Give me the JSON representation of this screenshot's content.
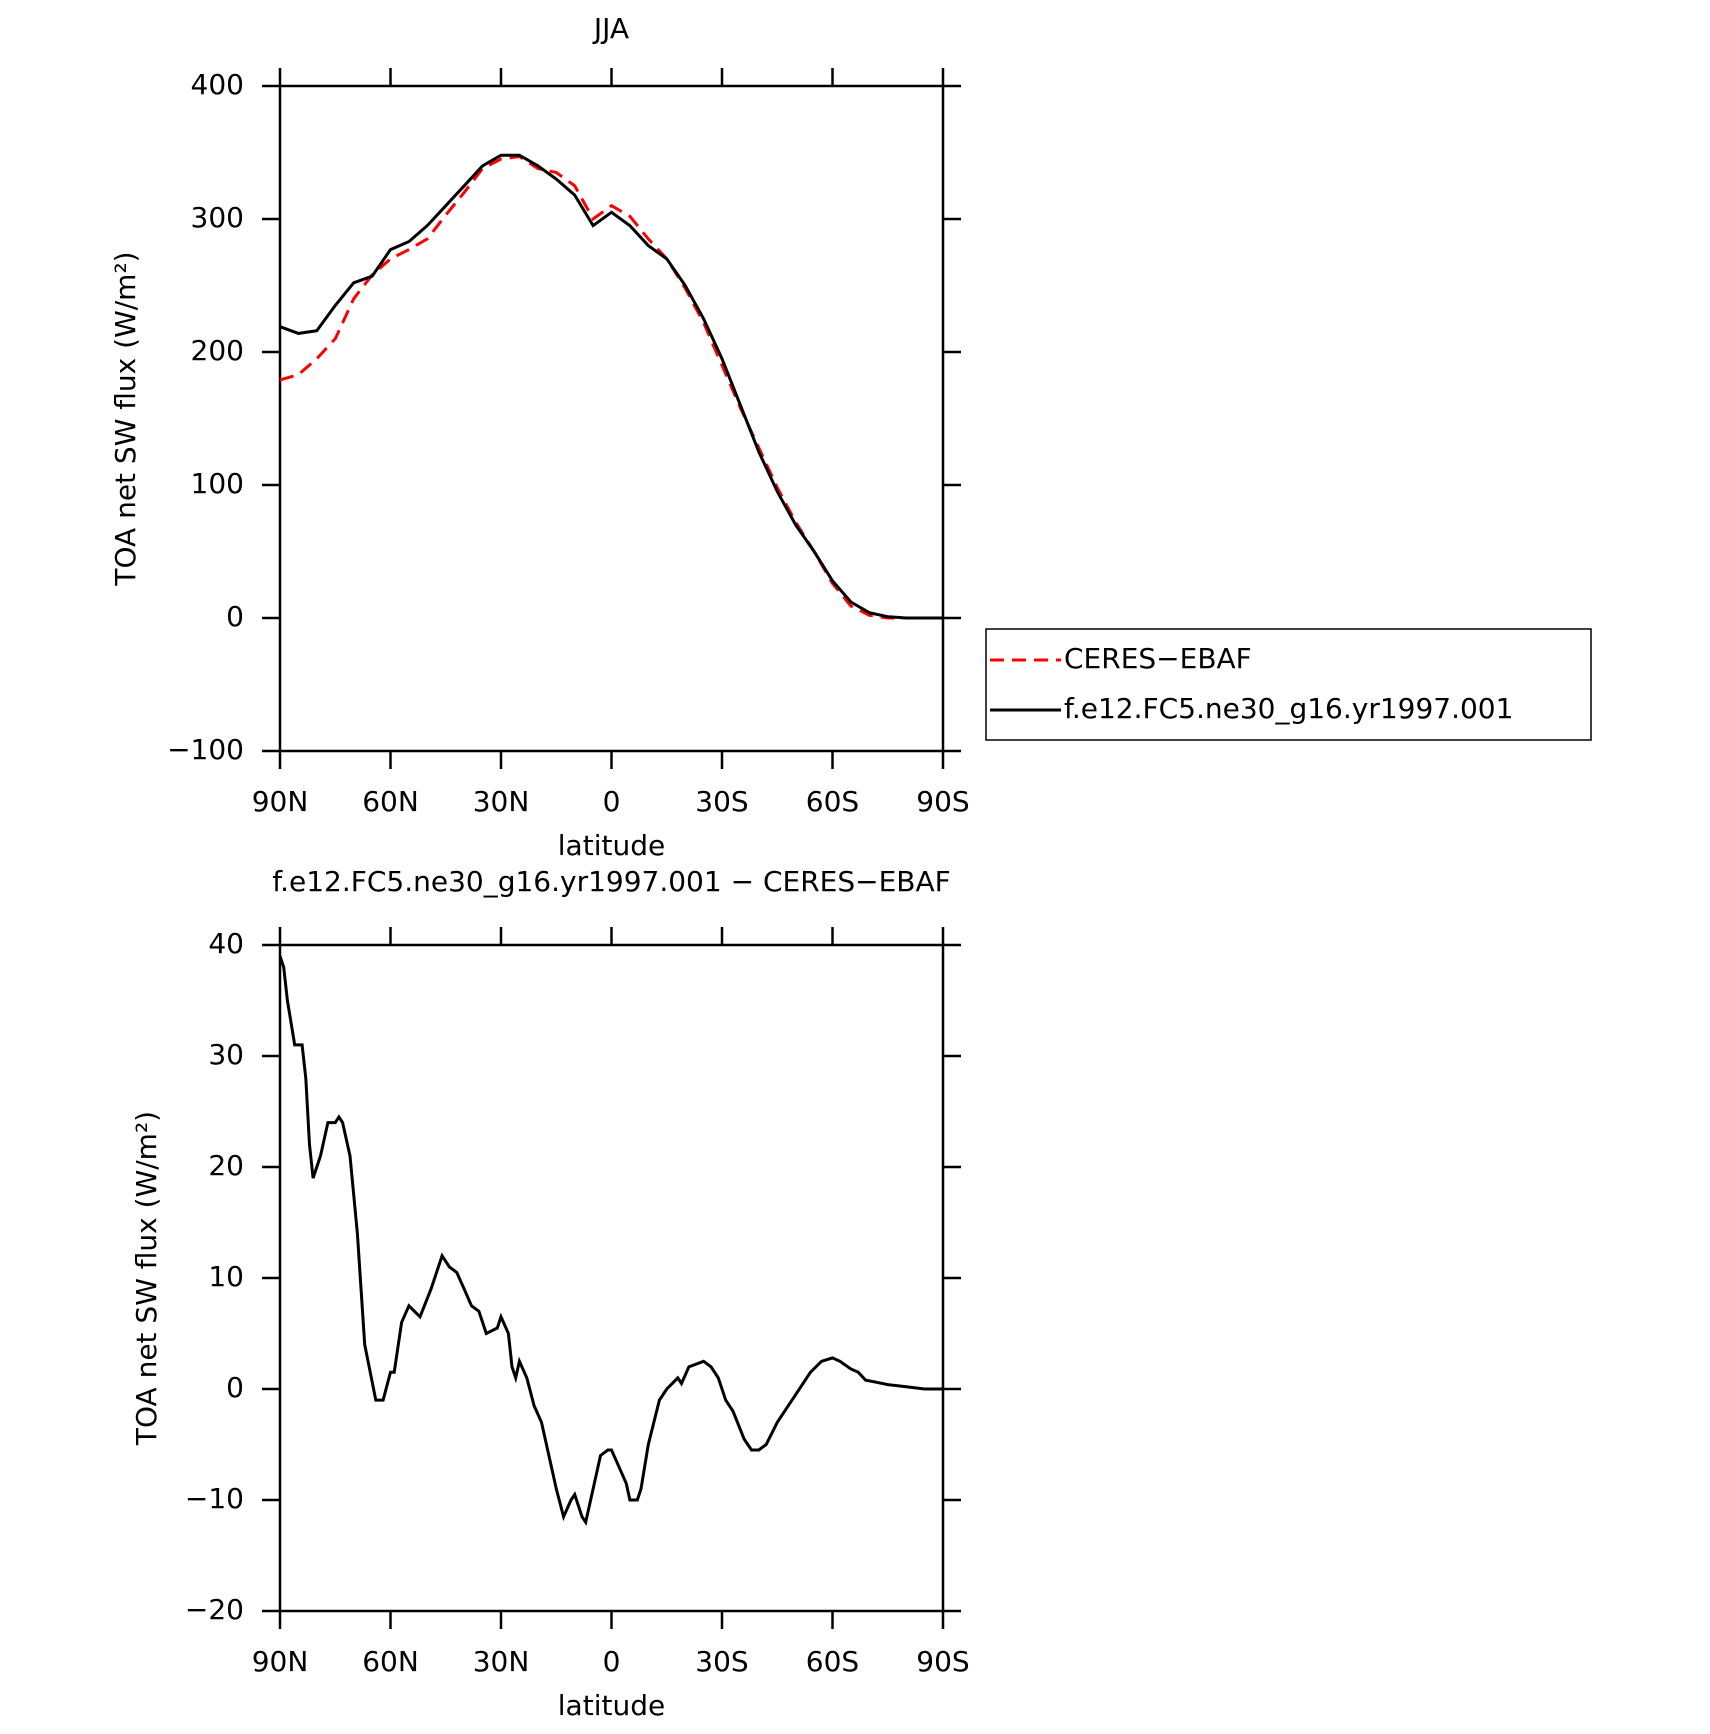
{
  "chart_data": [
    {
      "type": "line",
      "title": "JJA",
      "xlabel": "latitude",
      "ylabel": "TOA net SW flux (W/m²)",
      "xlim": [
        90,
        -90
      ],
      "xticks": [
        {
          "value": 90,
          "label": "90N"
        },
        {
          "value": 60,
          "label": "60N"
        },
        {
          "value": 30,
          "label": "30N"
        },
        0,
        {
          "value": -30,
          "label": "30S"
        },
        {
          "value": -60,
          "label": "60S"
        },
        {
          "value": -90,
          "label": "90S"
        }
      ],
      "ylim": [
        -100,
        400
      ],
      "yticks": [
        {
          "value": -100,
          "label": "−100"
        },
        0,
        100,
        200,
        300,
        400
      ],
      "legend": "outside-right",
      "series": [
        {
          "name": "CERES−EBAF",
          "color": "#ff0000",
          "dashed": true,
          "x": [
            90,
            85,
            80,
            75,
            70,
            65,
            60,
            55,
            50,
            45,
            40,
            35,
            30,
            25,
            20,
            15,
            10,
            5,
            0,
            -5,
            -10,
            -15,
            -20,
            -25,
            -30,
            -35,
            -40,
            -45,
            -50,
            -55,
            -60,
            -65,
            -70,
            -75,
            -80,
            -85,
            -90
          ],
          "values": [
            179,
            183,
            195,
            210,
            240,
            258,
            270,
            277,
            285,
            303,
            320,
            338,
            345,
            347,
            338,
            335,
            325,
            300,
            310,
            302,
            285,
            270,
            248,
            222,
            190,
            158,
            128,
            98,
            72,
            50,
            26,
            9,
            2,
            0,
            0,
            0,
            0
          ]
        },
        {
          "name": "f.e12.FC5.ne30_g16.yr1997.001",
          "color": "#000000",
          "dashed": false,
          "x": [
            90,
            85,
            80,
            75,
            70,
            65,
            60,
            55,
            50,
            45,
            40,
            35,
            30,
            25,
            20,
            15,
            10,
            5,
            0,
            -5,
            -10,
            -15,
            -20,
            -25,
            -30,
            -35,
            -40,
            -45,
            -50,
            -55,
            -60,
            -65,
            -70,
            -75,
            -80,
            -85,
            -90
          ],
          "values": [
            219,
            214,
            216,
            235,
            252,
            257,
            277,
            283,
            295,
            310,
            325,
            340,
            348,
            348,
            340,
            330,
            318,
            295,
            305,
            295,
            280,
            270,
            250,
            225,
            195,
            160,
            125,
            95,
            70,
            50,
            28,
            12,
            4,
            1,
            0,
            0,
            0
          ]
        }
      ]
    },
    {
      "type": "line",
      "title": "f.e12.FC5.ne30_g16.yr1997.001 − CERES−EBAF",
      "xlabel": "latitude",
      "ylabel": "TOA net SW flux (W/m²)",
      "xlim": [
        90,
        -90
      ],
      "xticks": [
        {
          "value": 90,
          "label": "90N"
        },
        {
          "value": 60,
          "label": "60N"
        },
        {
          "value": 30,
          "label": "30N"
        },
        0,
        {
          "value": -30,
          "label": "30S"
        },
        {
          "value": -60,
          "label": "60S"
        },
        {
          "value": -90,
          "label": "90S"
        }
      ],
      "ylim": [
        -20,
        40
      ],
      "yticks": [
        {
          "value": -20,
          "label": "−20"
        },
        {
          "value": -10,
          "label": "−10"
        },
        0,
        10,
        20,
        30,
        40
      ],
      "series": [
        {
          "color": "#000000",
          "dashed": false,
          "x": [
            90,
            89,
            88,
            86,
            84,
            83,
            82,
            81,
            79,
            77,
            75,
            74,
            73,
            71,
            69,
            67,
            64,
            62,
            60,
            59,
            57,
            55,
            52,
            49,
            46,
            44,
            42,
            40,
            38,
            36,
            34,
            31,
            30,
            28,
            27,
            26,
            25,
            23,
            21,
            19,
            17,
            15,
            13,
            11,
            10,
            8,
            7,
            5,
            3,
            1,
            0,
            -2,
            -4,
            -5,
            -7,
            -8,
            -10,
            -13,
            -15,
            -18,
            -19,
            -21,
            -25,
            -27,
            -29,
            -31,
            -33,
            -36,
            -38,
            -40,
            -42,
            -45,
            -48,
            -51,
            -54,
            -57,
            -60,
            -62,
            -65,
            -67,
            -69,
            -72,
            -75,
            -80,
            -85,
            -90
          ],
          "values": [
            39,
            38,
            35,
            31,
            31,
            28,
            22,
            19,
            21,
            24,
            24,
            24.5,
            24,
            21,
            14,
            4,
            -1,
            -1,
            1.5,
            1.5,
            6,
            7.5,
            6.5,
            9,
            12,
            11,
            10.5,
            9,
            7.5,
            7,
            5,
            5.5,
            6.5,
            5,
            2,
            1,
            2.5,
            1,
            -1.5,
            -3,
            -6,
            -9,
            -11.5,
            -10,
            -9.5,
            -11.5,
            -12,
            -9,
            -6,
            -5.5,
            -5.5,
            -7,
            -8.5,
            -10,
            -10,
            -9,
            -5,
            -1,
            0,
            1,
            0.5,
            2,
            2.5,
            2,
            1,
            -1,
            -2,
            -4.5,
            -5.5,
            -5.5,
            -5,
            -3,
            -1.5,
            0,
            1.5,
            2.5,
            2.8,
            2.5,
            1.8,
            1.5,
            0.8,
            0.6,
            0.4,
            0.2,
            0,
            0
          ]
        }
      ]
    }
  ]
}
